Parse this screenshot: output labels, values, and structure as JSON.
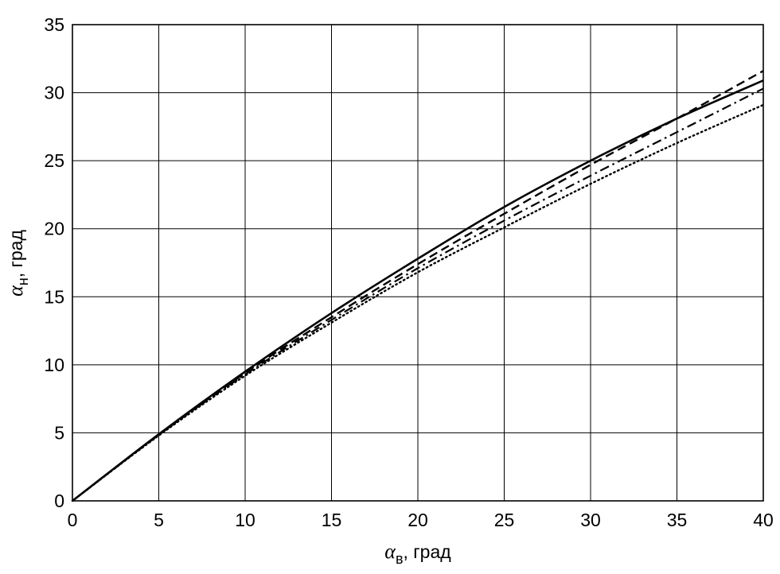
{
  "chart_data": {
    "type": "line",
    "title": "",
    "xlabel": {
      "symbol": "α",
      "subscript": "в",
      "suffix": ", град"
    },
    "ylabel": {
      "symbol": "α",
      "subscript": "н",
      "suffix": ", град"
    },
    "xlim": [
      0,
      40
    ],
    "ylim": [
      0,
      35
    ],
    "xticks": [
      "0",
      "5",
      "10",
      "15",
      "20",
      "25",
      "30",
      "35",
      "40"
    ],
    "yticks": [
      "0",
      "5",
      "10",
      "15",
      "20",
      "25",
      "30",
      "35"
    ],
    "grid": true,
    "legend": "none",
    "series": [
      {
        "style": "solid",
        "x": [
          0,
          5,
          10,
          15,
          20,
          25,
          30,
          35,
          40
        ],
        "y": [
          0,
          4.9,
          9.5,
          13.8,
          17.8,
          21.6,
          25.0,
          28.1,
          30.9
        ]
      },
      {
        "style": "dashed",
        "x": [
          0,
          5,
          10,
          15,
          20,
          25,
          30,
          35,
          40
        ],
        "y": [
          0,
          4.85,
          9.4,
          13.5,
          17.4,
          21.1,
          24.7,
          28.1,
          31.6
        ]
      },
      {
        "style": "dashdot",
        "x": [
          0,
          5,
          10,
          15,
          20,
          25,
          30,
          35,
          40
        ],
        "y": [
          0,
          4.85,
          9.3,
          13.3,
          17.1,
          20.6,
          23.9,
          27.1,
          30.3
        ]
      },
      {
        "style": "dotted",
        "x": [
          0,
          5,
          10,
          15,
          20,
          25,
          30,
          35,
          40
        ],
        "y": [
          0,
          4.8,
          9.2,
          13.1,
          16.8,
          20.1,
          23.3,
          26.3,
          29.1
        ]
      }
    ]
  }
}
